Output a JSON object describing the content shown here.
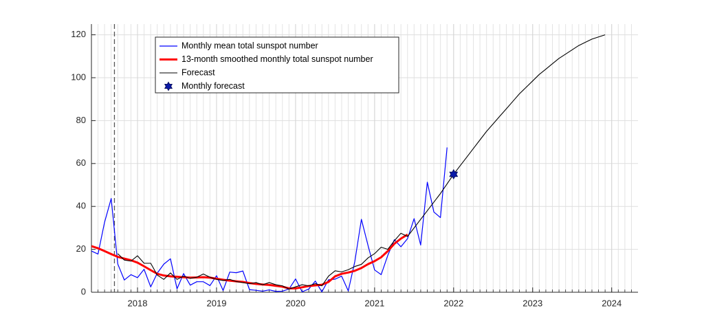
{
  "chart_data": {
    "type": "line",
    "xlim": [
      2017.417,
      2024.333
    ],
    "ylim": [
      0,
      125
    ],
    "xticks": [
      2018,
      2019,
      2020,
      2021,
      2022,
      2023,
      2024
    ],
    "yticks": [
      0,
      20,
      40,
      60,
      80,
      100,
      120
    ],
    "grid": true,
    "minor_x_grid": "monthly",
    "vline": 2017.708,
    "legend": "upper left",
    "series": [
      {
        "name": "Monthly mean total sunspot number",
        "color": "#0000ff",
        "x": [
          2017.417,
          2017.5,
          2017.583,
          2017.667,
          2017.75,
          2017.833,
          2017.917,
          2018,
          2018.083,
          2018.167,
          2018.25,
          2018.333,
          2018.417,
          2018.5,
          2018.583,
          2018.667,
          2018.75,
          2018.833,
          2018.917,
          2019,
          2019.083,
          2019.167,
          2019.25,
          2019.333,
          2019.417,
          2019.5,
          2019.583,
          2019.667,
          2019.75,
          2019.833,
          2019.917,
          2020,
          2020.083,
          2020.167,
          2020.25,
          2020.333,
          2020.417,
          2020.5,
          2020.583,
          2020.667,
          2020.75,
          2020.833,
          2020.917,
          2021,
          2021.083,
          2021.167,
          2021.25,
          2021.333,
          2021.417,
          2021.5,
          2021.583,
          2021.667,
          2021.75,
          2021.833,
          2021.917
        ],
        "values": [
          19.2,
          17.8,
          32.6,
          43.7,
          13.2,
          5.7,
          8.2,
          6.8,
          10.7,
          2.5,
          8.9,
          13.1,
          15.6,
          1.6,
          8.7,
          3.3,
          4.9,
          4.9,
          3.1,
          7.7,
          0.8,
          9.4,
          9.1,
          9.9,
          1.2,
          0.9,
          0.5,
          1.1,
          0.4,
          0.5,
          1.5,
          6.2,
          0.2,
          1.5,
          5.2,
          0.2,
          5.8,
          6.1,
          7.5,
          0.6,
          14.4,
          34.0,
          21.8,
          10.4,
          8.2,
          17.2,
          24.5,
          21.2,
          25.0,
          34.3,
          22.0,
          51.3,
          37.4,
          34.8,
          67.5
        ]
      },
      {
        "name": "13-month smoothed monthly total sunspot number",
        "color": "#ff0000",
        "x": [
          2017.417,
          2017.5,
          2017.583,
          2017.667,
          2017.75,
          2017.833,
          2017.917,
          2018,
          2018.083,
          2018.167,
          2018.25,
          2018.333,
          2018.417,
          2018.5,
          2018.583,
          2018.667,
          2018.75,
          2018.833,
          2018.917,
          2019,
          2019.083,
          2019.167,
          2019.25,
          2019.333,
          2019.417,
          2019.5,
          2019.583,
          2019.667,
          2019.75,
          2019.833,
          2019.917,
          2020,
          2020.083,
          2020.167,
          2020.25,
          2020.333,
          2020.417,
          2020.5,
          2020.583,
          2020.667,
          2020.75,
          2020.833,
          2020.917,
          2021,
          2021.083,
          2021.167,
          2021.25,
          2021.333,
          2021.417
        ],
        "values": [
          21.5,
          20.5,
          19.2,
          17.8,
          16.5,
          15.7,
          14.9,
          13.8,
          12.1,
          10.3,
          8.6,
          7.8,
          7.4,
          7.2,
          7.0,
          6.8,
          6.9,
          7.0,
          6.8,
          6.3,
          5.8,
          5.4,
          5.1,
          4.8,
          4.3,
          3.9,
          3.6,
          3.4,
          3.0,
          2.6,
          1.8,
          1.8,
          2.3,
          2.9,
          3.2,
          3.5,
          4.8,
          7.4,
          8.6,
          9.2,
          10.0,
          11.3,
          13.1,
          14.5,
          16.3,
          19.2,
          22.6,
          25.0,
          26.9
        ]
      },
      {
        "name": "Forecast",
        "color": "#000000",
        "x": [
          2017.75,
          2017.833,
          2017.917,
          2018,
          2018.083,
          2018.167,
          2018.25,
          2018.333,
          2018.417,
          2018.5,
          2018.583,
          2018.667,
          2018.75,
          2018.833,
          2018.917,
          2019,
          2019.083,
          2019.167,
          2019.25,
          2019.333,
          2019.417,
          2019.5,
          2019.583,
          2019.667,
          2019.75,
          2019.833,
          2019.917,
          2020,
          2020.083,
          2020.167,
          2020.25,
          2020.333,
          2020.417,
          2020.5,
          2020.583,
          2020.667,
          2020.75,
          2020.833,
          2020.917,
          2021,
          2021.083,
          2021.167,
          2021.25,
          2021.333,
          2021.417,
          2021.5,
          2021.583,
          2021.667,
          2021.75,
          2021.833,
          2021.917,
          2022,
          2022.083,
          2022.167,
          2022.25,
          2022.333,
          2022.417,
          2022.5,
          2022.583,
          2022.667,
          2022.75,
          2022.833,
          2022.917,
          2023,
          2023.083,
          2023.167,
          2023.25,
          2023.333,
          2023.417,
          2023.5,
          2023.583,
          2023.667,
          2023.75,
          2023.833,
          2023.917
        ],
        "values": [
          18,
          15,
          14.5,
          17,
          13.5,
          13.5,
          8,
          6,
          9,
          6,
          7.5,
          6.5,
          7,
          8.5,
          7,
          6,
          5.5,
          6,
          5,
          4.5,
          4,
          4.5,
          3.5,
          4.5,
          3.5,
          3,
          1.5,
          2.5,
          3.5,
          3,
          4,
          3,
          7.5,
          10,
          9.5,
          10.5,
          12,
          13,
          16,
          18,
          21,
          20,
          24,
          27.5,
          26,
          30,
          34,
          38,
          42,
          46,
          50.5,
          55,
          59,
          63,
          67,
          71,
          75,
          78.5,
          82,
          85.5,
          89,
          92.5,
          95.5,
          98.5,
          101.5,
          104,
          106.5,
          109,
          111,
          113,
          115,
          116.5,
          118,
          119,
          120
        ]
      },
      {
        "name": "Monthly forecast",
        "color": "#0a1aa8",
        "marker": "hexagram",
        "x": [
          2022
        ],
        "values": [
          55
        ]
      }
    ]
  }
}
